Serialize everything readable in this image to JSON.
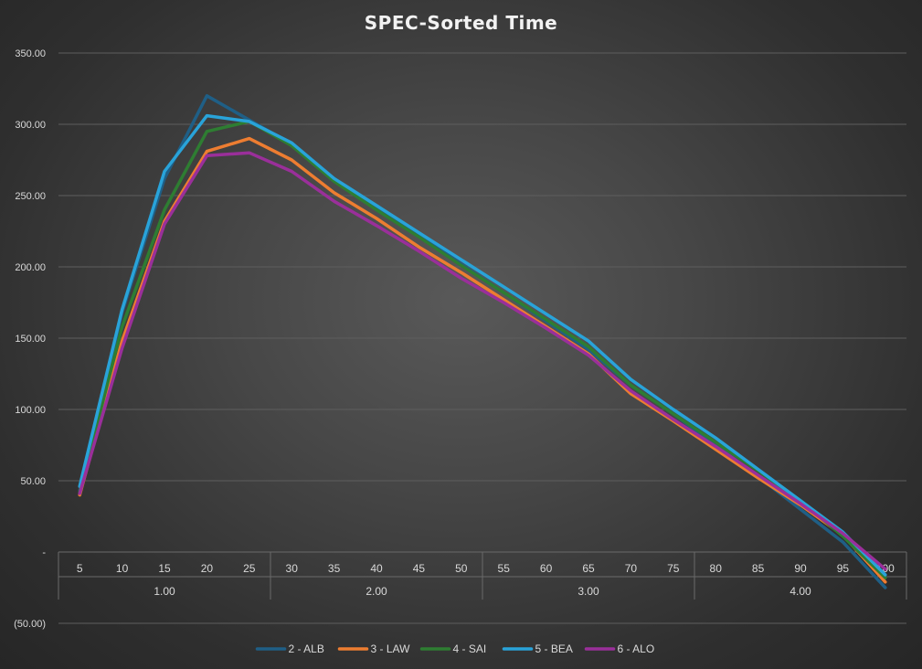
{
  "chart_data": {
    "type": "line",
    "title": "SPEC-Sorted Time",
    "xlabel": "",
    "ylabel": "",
    "ylim": [
      -50,
      350
    ],
    "y_tick_labels": [
      {
        "value": 350,
        "label": "350.00"
      },
      {
        "value": 300,
        "label": "300.00"
      },
      {
        "value": 250,
        "label": "250.00"
      },
      {
        "value": 200,
        "label": "200.00"
      },
      {
        "value": 150,
        "label": "150.00"
      },
      {
        "value": 100,
        "label": "100.00"
      },
      {
        "value": 50,
        "label": "50.00"
      },
      {
        "value": 0,
        "label": "-"
      },
      {
        "value": -50,
        "label": "(50.00)"
      }
    ],
    "categories": [
      "5",
      "10",
      "15",
      "20",
      "25",
      "30",
      "35",
      "40",
      "45",
      "50",
      "55",
      "60",
      "65",
      "70",
      "75",
      "80",
      "85",
      "90",
      "95",
      "100"
    ],
    "groups": [
      {
        "label": "1.00",
        "count": 5
      },
      {
        "label": "2.00",
        "count": 5
      },
      {
        "label": "3.00",
        "count": 5
      },
      {
        "label": "4.00",
        "count": 5
      }
    ],
    "legend_position": "bottom",
    "grid": true,
    "series": [
      {
        "name": "2 - ALB",
        "color": "#1f5f86",
        "values": [
          43,
          168,
          262,
          320,
          303,
          286,
          262,
          242,
          222,
          202,
          182,
          162,
          142,
          117,
          97,
          75,
          53,
          30,
          7,
          -25
        ]
      },
      {
        "name": "3 - LAW",
        "color": "#ed7d31",
        "values": [
          40,
          148,
          232,
          281,
          290,
          275,
          252,
          234,
          214,
          196,
          177,
          158,
          139,
          111,
          92,
          72,
          52,
          33,
          12,
          -21
        ]
      },
      {
        "name": "4 - SAI",
        "color": "#2e7d32",
        "values": [
          42,
          158,
          240,
          295,
          302,
          285,
          260,
          240,
          221,
          201,
          182,
          163,
          144,
          117,
          97,
          77,
          57,
          36,
          11,
          -18
        ]
      },
      {
        "name": "5 - BEA",
        "color": "#29a3d9",
        "values": [
          46,
          170,
          267,
          306,
          302,
          287,
          262,
          243,
          224,
          205,
          186,
          167,
          148,
          121,
          100,
          80,
          58,
          36,
          14,
          -16
        ]
      },
      {
        "name": "6 - ALO",
        "color": "#9a2f9a",
        "values": [
          41,
          143,
          230,
          278,
          280,
          267,
          246,
          229,
          211,
          192,
          175,
          157,
          138,
          113,
          93,
          74,
          54,
          34,
          13,
          -12
        ]
      }
    ]
  }
}
